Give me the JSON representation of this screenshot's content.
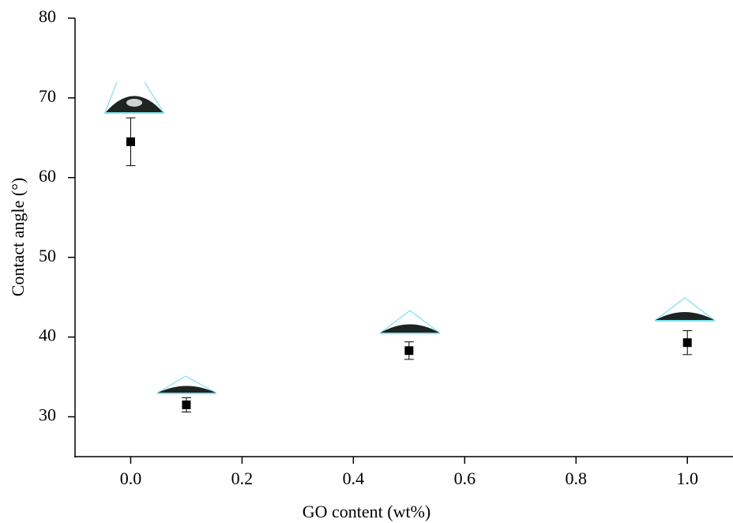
{
  "chart_data": {
    "type": "scatter",
    "x_label": "GO content (wt%)",
    "y_label": "Contact angle (°)",
    "x": [
      0,
      0.1,
      0.5,
      1.0
    ],
    "series": [
      {
        "color": "#000000",
        "values": [
          64.5,
          31.5,
          38.3,
          39.3
        ],
        "errors": [
          3.0,
          0.9,
          1.1,
          1.5
        ]
      }
    ],
    "xlim": [
      -0.1,
      1.082
    ],
    "ylim": [
      25,
      80
    ],
    "xticks": [
      {
        "value": 0,
        "label": "0.0"
      },
      0.2,
      0.4,
      0.6,
      0.8,
      {
        "value": 1.0,
        "label": "1.0"
      }
    ],
    "yticks": [
      30,
      40,
      50,
      60,
      70,
      80
    ]
  }
}
